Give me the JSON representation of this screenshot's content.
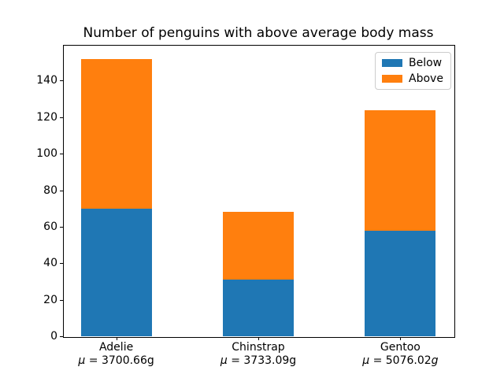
{
  "chart_data": {
    "type": "bar",
    "stacked": true,
    "title": "Number of penguins with above average body mass",
    "categories": [
      "Adelie",
      "Chinstrap",
      "Gentoo"
    ],
    "category_sublabels": [
      "μ = 3700.66g",
      "μ = 3733.09g",
      "μ = 5076.02g"
    ],
    "sublabel_italic_unit": [
      false,
      false,
      true
    ],
    "series": [
      {
        "name": "Below",
        "color": "#1f77b4",
        "values": [
          70,
          31,
          58
        ]
      },
      {
        "name": "Above",
        "color": "#ff7f0e",
        "values": [
          82,
          37,
          66
        ]
      }
    ],
    "stack_totals": [
      152,
      68,
      124
    ],
    "xlabel": "",
    "ylabel": "",
    "yticks": [
      0,
      20,
      40,
      60,
      80,
      100,
      120,
      140
    ],
    "ylim": [
      0,
      159.6
    ],
    "xlim": [
      -0.375,
      2.375
    ],
    "bar_width_fraction": 0.5,
    "grid": false,
    "legend_position": "upper right"
  }
}
